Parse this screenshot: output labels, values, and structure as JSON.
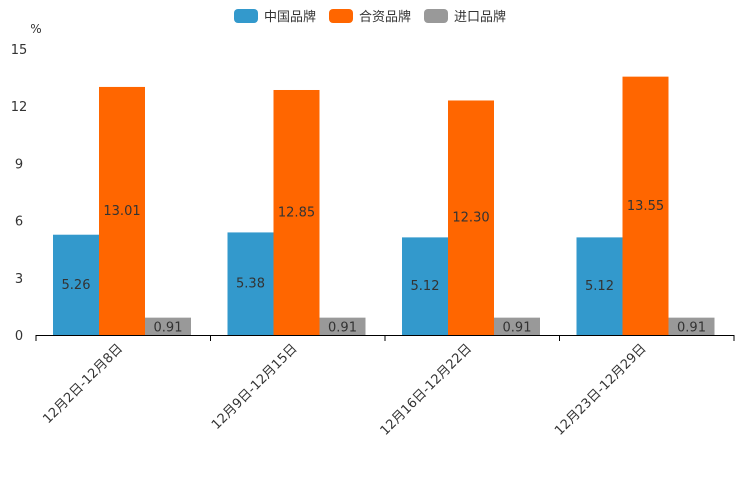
{
  "chart_data": {
    "type": "bar",
    "title": "",
    "xlabel": "",
    "ylabel": "%",
    "ylim": [
      0,
      15
    ],
    "yticks": [
      0,
      3,
      6,
      9,
      12,
      15
    ],
    "grid": false,
    "legend_position": "top-center",
    "categories": [
      "12月2日-12月8日",
      "12月9日-12月15日",
      "12月16日-12月22日",
      "12月23日-12月29日"
    ],
    "series": [
      {
        "name": "中国品牌",
        "color": "#3399cc",
        "values": [
          5.26,
          5.38,
          5.12,
          5.12
        ],
        "labels": [
          "5.26",
          "5.38",
          "5.12",
          "5.12"
        ]
      },
      {
        "name": "合资品牌",
        "color": "#ff6600",
        "values": [
          13.01,
          12.85,
          12.3,
          13.55
        ],
        "labels": [
          "13.01",
          "12.85",
          "12.30",
          "13.55"
        ]
      },
      {
        "name": "进口品牌",
        "color": "#999999",
        "values": [
          0.91,
          0.91,
          0.91,
          0.91
        ],
        "labels": [
          "0.91",
          "0.91",
          "0.91",
          "0.91"
        ]
      }
    ]
  }
}
